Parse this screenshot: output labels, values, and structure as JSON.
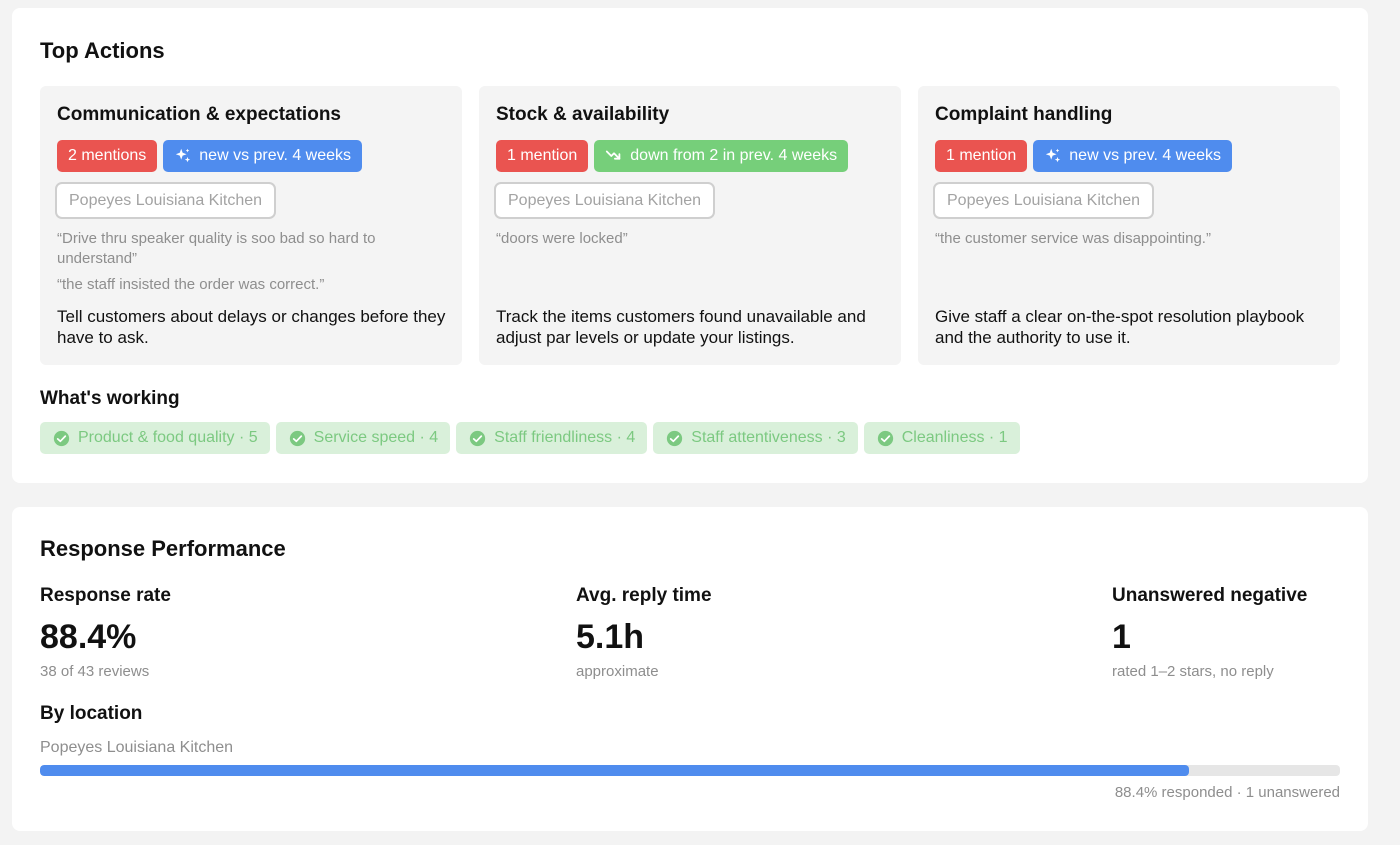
{
  "top_actions": {
    "title": "Top Actions",
    "cards": [
      {
        "title": "Communication & expectations",
        "mentions": "2 mentions",
        "trend_label": "new vs prev. 4 weeks",
        "trend_icon": "sparkle-icon",
        "location": "Popeyes Louisiana Kitchen",
        "quotes": [
          "“Drive thru speaker quality is soo bad so hard to understand”",
          "“the staff insisted the order was correct.”"
        ],
        "advice": "Tell customers about delays or changes before they have to ask."
      },
      {
        "title": "Stock & availability",
        "mentions": "1 mention",
        "trend_label": "down from 2 in prev. 4 weeks",
        "trend_icon": "trend-down-icon",
        "location": "Popeyes Louisiana Kitchen",
        "quotes": [
          "“doors were locked”"
        ],
        "advice": "Track the items customers found unavailable and adjust par levels or update your listings."
      },
      {
        "title": "Complaint handling",
        "mentions": "1 mention",
        "trend_label": "new vs prev. 4 weeks",
        "trend_icon": "sparkle-icon",
        "location": "Popeyes Louisiana Kitchen",
        "quotes": [
          "“the customer service was disappointing.”"
        ],
        "advice": "Give staff a clear on-the-spot resolution playbook and the authority to use it."
      }
    ]
  },
  "whats_working": {
    "title": "What's working",
    "items": [
      "Product & food quality · 5",
      "Service speed · 4",
      "Staff friendliness · 4",
      "Staff attentiveness · 3",
      "Cleanliness · 1"
    ]
  },
  "response_performance": {
    "title": "Response Performance",
    "metrics": [
      {
        "label": "Response rate",
        "value": "88.4%",
        "sub": "38 of 43 reviews"
      },
      {
        "label": "Avg. reply time",
        "value": "5.1h",
        "sub": "approximate"
      },
      {
        "label": "Unanswered negative",
        "value": "1",
        "sub": "rated 1–2 stars, no reply"
      }
    ],
    "by_location": {
      "title": "By location",
      "locations": [
        {
          "name": "Popeyes Louisiana Kitchen",
          "responded_pct": 88.4,
          "caption": "88.4% responded · 1 unanswered"
        }
      ]
    }
  },
  "colors": {
    "mention_red": "#ea5450",
    "trend_blue": "#4f8cee",
    "trend_green": "#76cf7a",
    "working_bg": "#d9f0da",
    "working_text": "#7cc981",
    "bar_fill": "#4f8cee"
  }
}
